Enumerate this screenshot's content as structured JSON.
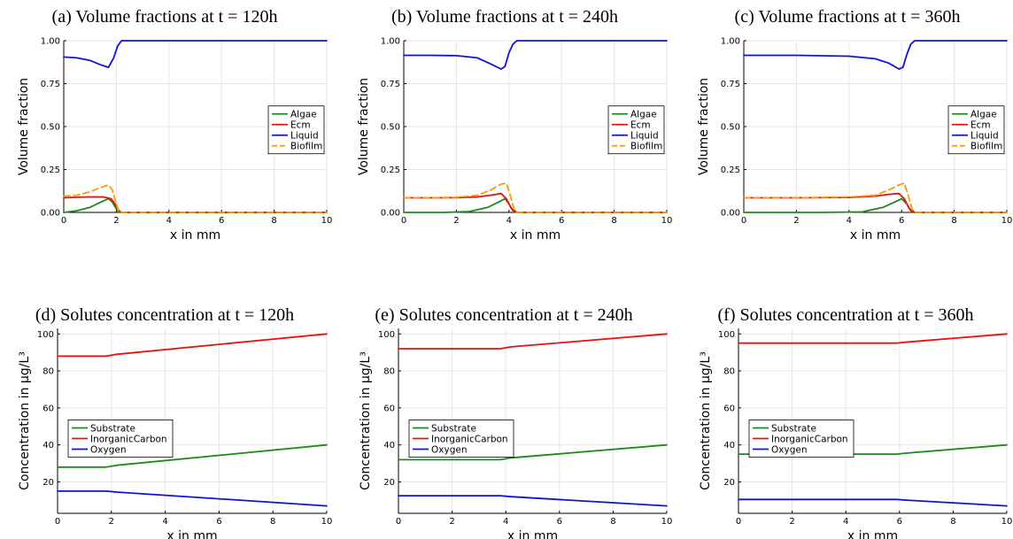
{
  "chart_data": [
    {
      "type": "line",
      "caption": "(a) Volume fractions at t = 120h",
      "xlabel": "x in mm",
      "ylabel": "Volume fraction",
      "xlim": [
        0,
        10
      ],
      "ylim": [
        0,
        1
      ],
      "xticks": [
        "0",
        "2",
        "4",
        "6",
        "8",
        "10"
      ],
      "yticks": [
        "0.00",
        "0.25",
        "0.50",
        "0.75",
        "1.00"
      ],
      "grid": true,
      "legend_position": "right-middle",
      "series": [
        {
          "name": "Algae",
          "color": "#1a8a1a",
          "dashed": false,
          "x": [
            0,
            0.5,
            1.0,
            1.4,
            1.7,
            1.85,
            2.0,
            2.1,
            2.2,
            10
          ],
          "y": [
            0.0,
            0.01,
            0.03,
            0.06,
            0.08,
            0.06,
            0.02,
            0.0,
            0.0,
            0.0
          ]
        },
        {
          "name": "Ecm",
          "color": "#e81010",
          "dashed": false,
          "x": [
            0,
            0.5,
            1.0,
            1.5,
            1.8,
            1.95,
            2.1,
            2.2,
            10
          ],
          "y": [
            0.085,
            0.088,
            0.09,
            0.09,
            0.08,
            0.05,
            0.01,
            0.0,
            0.0
          ]
        },
        {
          "name": "Liquid",
          "color": "#1010dd",
          "dashed": false,
          "x": [
            0,
            0.5,
            1.0,
            1.4,
            1.7,
            1.9,
            2.05,
            2.2,
            10
          ],
          "y": [
            0.905,
            0.9,
            0.885,
            0.86,
            0.845,
            0.9,
            0.97,
            1.0,
            1.0
          ]
        },
        {
          "name": "Biofilm",
          "color": "#f0a000",
          "dashed": true,
          "x": [
            0,
            0.5,
            1.0,
            1.4,
            1.7,
            1.85,
            2.0,
            2.1,
            2.2,
            10
          ],
          "y": [
            0.095,
            0.1,
            0.12,
            0.145,
            0.16,
            0.13,
            0.05,
            0.0,
            0.0,
            0.0
          ]
        }
      ]
    },
    {
      "type": "line",
      "caption": "(b) Volume fractions at t = 240h",
      "xlabel": "x in mm",
      "ylabel": "Volume fraction",
      "xlim": [
        0,
        10
      ],
      "ylim": [
        0,
        1
      ],
      "xticks": [
        "0",
        "2",
        "4",
        "6",
        "8",
        "10"
      ],
      "yticks": [
        "0.00",
        "0.25",
        "0.50",
        "0.75",
        "1.00"
      ],
      "grid": true,
      "legend_position": "right-middle",
      "series": [
        {
          "name": "Algae",
          "color": "#1a8a1a",
          "dashed": false,
          "x": [
            0,
            1.5,
            2.5,
            3.2,
            3.6,
            3.85,
            4.0,
            4.15,
            4.3,
            10
          ],
          "y": [
            0.0,
            0.0,
            0.005,
            0.03,
            0.06,
            0.08,
            0.05,
            0.01,
            0.0,
            0.0
          ]
        },
        {
          "name": "Ecm",
          "color": "#e81010",
          "dashed": false,
          "x": [
            0,
            1,
            2,
            2.8,
            3.3,
            3.7,
            3.9,
            4.1,
            4.3,
            10
          ],
          "y": [
            0.085,
            0.085,
            0.086,
            0.09,
            0.1,
            0.11,
            0.08,
            0.02,
            0.0,
            0.0
          ]
        },
        {
          "name": "Liquid",
          "color": "#1010dd",
          "dashed": false,
          "x": [
            0,
            1,
            2,
            2.8,
            3.3,
            3.7,
            3.85,
            4.0,
            4.15,
            4.3,
            10
          ],
          "y": [
            0.915,
            0.915,
            0.913,
            0.9,
            0.865,
            0.835,
            0.85,
            0.93,
            0.98,
            1.0,
            1.0
          ]
        },
        {
          "name": "Biofilm",
          "color": "#f0a000",
          "dashed": true,
          "x": [
            0,
            1,
            2,
            2.8,
            3.3,
            3.7,
            3.9,
            4.05,
            4.2,
            4.3,
            10
          ],
          "y": [
            0.085,
            0.085,
            0.088,
            0.1,
            0.13,
            0.165,
            0.17,
            0.1,
            0.02,
            0.0,
            0.0
          ]
        }
      ]
    },
    {
      "type": "line",
      "caption": "(c) Volume fractions at t = 360h",
      "xlabel": "x in mm",
      "ylabel": "Volume fraction",
      "xlim": [
        0,
        10
      ],
      "ylim": [
        0,
        1
      ],
      "xticks": [
        "0",
        "2",
        "4",
        "6",
        "8",
        "10"
      ],
      "yticks": [
        "0.00",
        "0.25",
        "0.50",
        "0.75",
        "1.00"
      ],
      "grid": true,
      "legend_position": "right-middle",
      "series": [
        {
          "name": "Algae",
          "color": "#1a8a1a",
          "dashed": false,
          "x": [
            0,
            3,
            4.5,
            5.3,
            5.8,
            6.0,
            6.2,
            6.35,
            6.5,
            10
          ],
          "y": [
            0.0,
            0.0,
            0.003,
            0.03,
            0.065,
            0.08,
            0.05,
            0.01,
            0.0,
            0.0
          ]
        },
        {
          "name": "Ecm",
          "color": "#e81010",
          "dashed": false,
          "x": [
            0,
            2,
            4,
            5,
            5.5,
            5.9,
            6.1,
            6.3,
            6.5,
            10
          ],
          "y": [
            0.085,
            0.085,
            0.087,
            0.095,
            0.105,
            0.11,
            0.08,
            0.02,
            0.0,
            0.0
          ]
        },
        {
          "name": "Liquid",
          "color": "#1010dd",
          "dashed": false,
          "x": [
            0,
            2,
            4,
            5,
            5.5,
            5.9,
            6.05,
            6.2,
            6.35,
            6.5,
            10
          ],
          "y": [
            0.915,
            0.915,
            0.91,
            0.895,
            0.87,
            0.835,
            0.845,
            0.92,
            0.98,
            1.0,
            1.0
          ]
        },
        {
          "name": "Biofilm",
          "color": "#f0a000",
          "dashed": true,
          "x": [
            0,
            2,
            4,
            5,
            5.5,
            5.9,
            6.1,
            6.25,
            6.4,
            6.5,
            10
          ],
          "y": [
            0.085,
            0.085,
            0.09,
            0.1,
            0.13,
            0.16,
            0.17,
            0.1,
            0.02,
            0.0,
            0.0
          ]
        }
      ]
    },
    {
      "type": "line",
      "caption": "(d) Solutes concentration at t = 120h",
      "xlabel": "x in mm",
      "ylabel": "Concentration in µg/L³",
      "xlim": [
        0,
        10
      ],
      "ylim": [
        3,
        103
      ],
      "xticks": [
        "0",
        "2",
        "4",
        "6",
        "8",
        "10"
      ],
      "yticks": [
        "20",
        "40",
        "60",
        "80",
        "100"
      ],
      "grid": true,
      "legend_position": "left-middle",
      "series": [
        {
          "name": "Substrate",
          "color": "#1a8a1a",
          "dashed": false,
          "x": [
            0,
            1.8,
            2.2,
            10
          ],
          "y": [
            28,
            28,
            29,
            40
          ]
        },
        {
          "name": "InorganicCarbon",
          "color": "#e81010",
          "dashed": false,
          "x": [
            0,
            1.8,
            2.2,
            10
          ],
          "y": [
            88,
            88,
            89,
            100
          ]
        },
        {
          "name": "Oxygen",
          "color": "#1010dd",
          "dashed": false,
          "x": [
            0,
            1.8,
            2.2,
            10
          ],
          "y": [
            15,
            15,
            14.5,
            7
          ]
        }
      ]
    },
    {
      "type": "line",
      "caption": "(e) Solutes concentration at t = 240h",
      "xlabel": "x in mm",
      "ylabel": "Concentration in µg/L³",
      "xlim": [
        0,
        10
      ],
      "ylim": [
        3,
        103
      ],
      "xticks": [
        "0",
        "2",
        "4",
        "6",
        "8",
        "10"
      ],
      "yticks": [
        "20",
        "40",
        "60",
        "80",
        "100"
      ],
      "grid": true,
      "legend_position": "left-middle",
      "series": [
        {
          "name": "Substrate",
          "color": "#1a8a1a",
          "dashed": false,
          "x": [
            0,
            3.8,
            4.2,
            10
          ],
          "y": [
            32,
            32,
            33,
            40
          ]
        },
        {
          "name": "InorganicCarbon",
          "color": "#e81010",
          "dashed": false,
          "x": [
            0,
            3.8,
            4.2,
            10
          ],
          "y": [
            92,
            92,
            93,
            100
          ]
        },
        {
          "name": "Oxygen",
          "color": "#1010dd",
          "dashed": false,
          "x": [
            0,
            3.8,
            4.2,
            10
          ],
          "y": [
            12.5,
            12.5,
            12,
            7
          ]
        }
      ]
    },
    {
      "type": "line",
      "caption": "(f) Solutes concentration at t = 360h",
      "xlabel": "x in mm",
      "ylabel": "Concentration in µg/L³",
      "xlim": [
        0,
        10
      ],
      "ylim": [
        3,
        103
      ],
      "xticks": [
        "0",
        "2",
        "4",
        "6",
        "8",
        "10"
      ],
      "yticks": [
        "20",
        "40",
        "60",
        "80",
        "100"
      ],
      "grid": true,
      "legend_position": "left-middle",
      "series": [
        {
          "name": "Substrate",
          "color": "#1a8a1a",
          "dashed": false,
          "x": [
            0,
            5.9,
            6.2,
            10
          ],
          "y": [
            35,
            35,
            35.5,
            40
          ]
        },
        {
          "name": "InorganicCarbon",
          "color": "#e81010",
          "dashed": false,
          "x": [
            0,
            5.9,
            6.2,
            10
          ],
          "y": [
            95,
            95,
            95.5,
            100
          ]
        },
        {
          "name": "Oxygen",
          "color": "#1010dd",
          "dashed": false,
          "x": [
            0,
            5.9,
            6.2,
            10
          ],
          "y": [
            10.5,
            10.5,
            10.2,
            7
          ]
        }
      ]
    }
  ]
}
